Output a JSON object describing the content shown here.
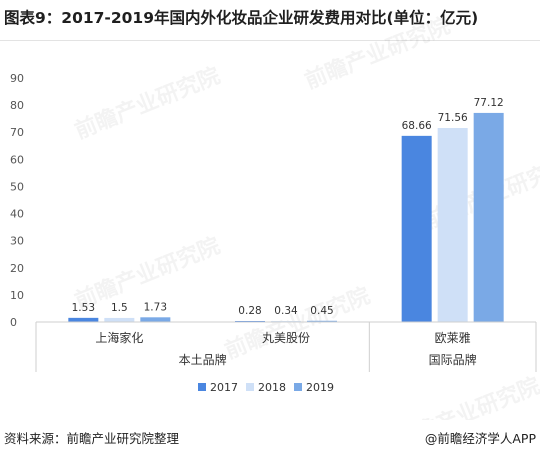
{
  "title": "图表9：2017-2019年国内外化妆品企业研发费用对比(单位：亿元)",
  "source": "资料来源：前瞻产业研究院整理",
  "credit": "@前瞻经济学人APP",
  "watermark": "前瞻产业研究院",
  "chart_data": {
    "type": "bar",
    "categories": [
      "上海家化",
      "丸美股份",
      "欧莱雅"
    ],
    "groups": [
      {
        "label": "本土品牌",
        "categories": [
          "上海家化",
          "丸美股份"
        ]
      },
      {
        "label": "国际品牌",
        "categories": [
          "欧莱雅"
        ]
      }
    ],
    "series": [
      {
        "name": "2017",
        "values": [
          1.53,
          0.28,
          68.66
        ],
        "color": "#4a86e0"
      },
      {
        "name": "2018",
        "values": [
          1.5,
          0.34,
          71.56
        ],
        "color": "#cfe0f7"
      },
      {
        "name": "2019",
        "values": [
          1.73,
          0.45,
          77.12
        ],
        "color": "#7aa9e6"
      }
    ],
    "data_labels": [
      [
        "1.53",
        "1.5",
        "1.73"
      ],
      [
        "0.28",
        "0.34",
        "0.45"
      ],
      [
        "68.66",
        "71.56",
        "77.12"
      ]
    ],
    "ylim": [
      0,
      90
    ],
    "yticks": [
      0,
      10,
      20,
      30,
      40,
      50,
      60,
      70,
      80,
      90
    ],
    "grid": false,
    "legend_position": "bottom"
  }
}
